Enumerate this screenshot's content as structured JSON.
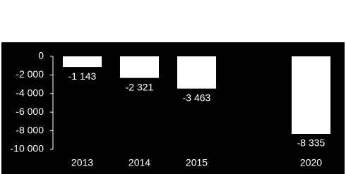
{
  "chart_data": {
    "type": "bar",
    "categories": [
      "2013",
      "2014",
      "2015",
      null,
      "2020"
    ],
    "values": [
      -1143,
      -2321,
      -3463,
      null,
      -8335
    ],
    "value_labels": [
      "-1 143",
      "-2 321",
      "-3 463",
      null,
      "-8 335"
    ],
    "color": "#ffffff",
    "ylim": [
      -10000,
      0
    ],
    "yticks": [
      0,
      {
        "value": -2000,
        "label": "-2 000"
      },
      {
        "value": -4000,
        "label": "-4 000"
      },
      {
        "value": -6000,
        "label": "-6 000"
      },
      {
        "value": -8000,
        "label": "-8 000"
      },
      {
        "value": -10000,
        "label": "-10 000"
      }
    ]
  }
}
